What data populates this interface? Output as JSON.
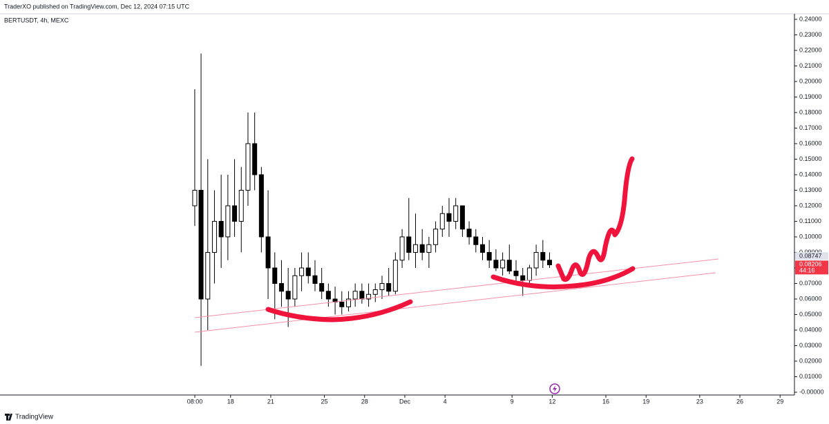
{
  "header": {
    "text": "TraderXO published on TradingView.com, Dec 12, 2024 07:15 UTC"
  },
  "chart_data": {
    "type": "candlestick",
    "symbol": "BERTUSDT, 4h, MEXC",
    "x": [
      15.33,
      15.8,
      16.3,
      16.8,
      17.3,
      17.8,
      18.3,
      18.8,
      19.3,
      19.8,
      20.3,
      20.8,
      21.3,
      21.8,
      22.3,
      22.8,
      23.3,
      23.8,
      24.3,
      24.8,
      25.3,
      25.8,
      26.3,
      26.8,
      27.3,
      27.8,
      28.3,
      28.8,
      29.3,
      29.8,
      30.3,
      30.8,
      31.3,
      31.8,
      32.3,
      32.8,
      33.3,
      33.8,
      34.3,
      34.8,
      35.3,
      35.8,
      36.3,
      36.8,
      37.3,
      37.8,
      38.3,
      38.8,
      39.3,
      39.8,
      40.3,
      40.8,
      41.3,
      41.8
    ],
    "open": [
      0.12,
      0.13,
      0.06,
      0.09,
      0.11,
      0.1,
      0.12,
      0.11,
      0.13,
      0.16,
      0.14,
      0.1,
      0.08,
      0.07,
      0.065,
      0.06,
      0.075,
      0.08,
      0.075,
      0.07,
      0.065,
      0.06,
      0.058,
      0.055,
      0.06,
      0.065,
      0.06,
      0.063,
      0.066,
      0.07,
      0.065,
      0.085,
      0.1,
      0.09,
      0.095,
      0.09,
      0.095,
      0.105,
      0.115,
      0.11,
      0.12,
      0.105,
      0.1,
      0.095,
      0.09,
      0.085,
      0.08,
      0.085,
      0.078,
      0.075,
      0.072,
      0.08,
      0.09,
      0.085
    ],
    "high": [
      0.195,
      0.218,
      0.15,
      0.13,
      0.14,
      0.14,
      0.15,
      0.145,
      0.18,
      0.18,
      0.145,
      0.13,
      0.09,
      0.085,
      0.08,
      0.08,
      0.09,
      0.09,
      0.085,
      0.08,
      0.07,
      0.068,
      0.065,
      0.065,
      0.07,
      0.07,
      0.07,
      0.07,
      0.075,
      0.08,
      0.09,
      0.105,
      0.125,
      0.115,
      0.105,
      0.1,
      0.11,
      0.12,
      0.125,
      0.125,
      0.12,
      0.11,
      0.105,
      0.1,
      0.098,
      0.092,
      0.09,
      0.095,
      0.085,
      0.08,
      0.082,
      0.095,
      0.098,
      0.09
    ],
    "low": [
      0.107,
      0.017,
      0.04,
      0.07,
      0.08,
      0.085,
      0.1,
      0.09,
      0.12,
      0.13,
      0.09,
      0.06,
      0.047,
      0.055,
      0.042,
      0.055,
      0.065,
      0.07,
      0.065,
      0.06,
      0.055,
      0.05,
      0.05,
      0.052,
      0.055,
      0.057,
      0.055,
      0.058,
      0.06,
      0.062,
      0.063,
      0.08,
      0.085,
      0.08,
      0.085,
      0.08,
      0.09,
      0.1,
      0.1,
      0.105,
      0.1,
      0.095,
      0.09,
      0.085,
      0.08,
      0.078,
      0.075,
      0.076,
      0.07,
      0.062,
      0.07,
      0.075,
      0.08,
      0.08
    ],
    "close": [
      0.13,
      0.06,
      0.09,
      0.11,
      0.1,
      0.12,
      0.11,
      0.13,
      0.16,
      0.14,
      0.1,
      0.08,
      0.07,
      0.065,
      0.06,
      0.075,
      0.08,
      0.075,
      0.07,
      0.065,
      0.06,
      0.058,
      0.055,
      0.06,
      0.065,
      0.06,
      0.063,
      0.066,
      0.07,
      0.065,
      0.085,
      0.1,
      0.09,
      0.095,
      0.09,
      0.095,
      0.105,
      0.115,
      0.11,
      0.12,
      0.105,
      0.1,
      0.095,
      0.09,
      0.085,
      0.08,
      0.085,
      0.078,
      0.075,
      0.072,
      0.08,
      0.09,
      0.085,
      0.082
    ],
    "xlim": [
      0.8,
      60.07
    ],
    "xticks": [
      {
        "value": 15.333,
        "label": "08:00"
      },
      {
        "value": 18,
        "label": "18"
      },
      {
        "value": 21,
        "label": "21"
      },
      {
        "value": 25,
        "label": "25"
      },
      {
        "value": 28,
        "label": "28"
      },
      {
        "value": 31,
        "label": "Dec"
      },
      {
        "value": 34,
        "label": "4"
      },
      {
        "value": 39,
        "label": "9"
      },
      {
        "value": 42,
        "label": "12"
      },
      {
        "value": 46,
        "label": "16"
      },
      {
        "value": 49,
        "label": "19"
      },
      {
        "value": 53,
        "label": "23"
      },
      {
        "value": 56,
        "label": "26"
      },
      {
        "value": 59,
        "label": "29"
      }
    ],
    "ylim": [
      0,
      0.24
    ],
    "yticks": [
      {
        "value": 0,
        "label": "-0.00000"
      },
      {
        "value": 0.01,
        "label": "0.01000"
      },
      {
        "value": 0.02,
        "label": "0.02000"
      },
      {
        "value": 0.03,
        "label": "0.03000"
      },
      {
        "value": 0.04,
        "label": "0.04000"
      },
      {
        "value": 0.05,
        "label": "0.05000"
      },
      {
        "value": 0.06,
        "label": "0.06000"
      },
      {
        "value": 0.07,
        "label": "0.07000"
      },
      {
        "value": 0.08,
        "label": "0.08000"
      },
      {
        "value": 0.09,
        "label": "0.09000"
      },
      {
        "value": 0.1,
        "label": "0.10000"
      },
      {
        "value": 0.11,
        "label": "0.11000"
      },
      {
        "value": 0.12,
        "label": "0.12000"
      },
      {
        "value": 0.13,
        "label": "0.13000"
      },
      {
        "value": 0.14,
        "label": "0.14000"
      },
      {
        "value": 0.15,
        "label": "0.15000"
      },
      {
        "value": 0.16,
        "label": "0.16000"
      },
      {
        "value": 0.17,
        "label": "0.17000"
      },
      {
        "value": 0.18,
        "label": "0.18000"
      },
      {
        "value": 0.19,
        "label": "0.19000"
      },
      {
        "value": 0.2,
        "label": "0.20000"
      },
      {
        "value": 0.21,
        "label": "0.21000"
      },
      {
        "value": 0.22,
        "label": "0.22000"
      },
      {
        "value": 0.23,
        "label": "0.23000"
      },
      {
        "value": 0.24,
        "label": "0.24000"
      }
    ],
    "price_labels": [
      {
        "value": 0.08747,
        "label": "0.08747",
        "color": "#e0e3eb"
      },
      {
        "value": 0.08206,
        "label": "0.08206",
        "countdown": "44:16",
        "color": "#f23645"
      }
    ]
  },
  "footer": {
    "brand": "TradingView"
  }
}
